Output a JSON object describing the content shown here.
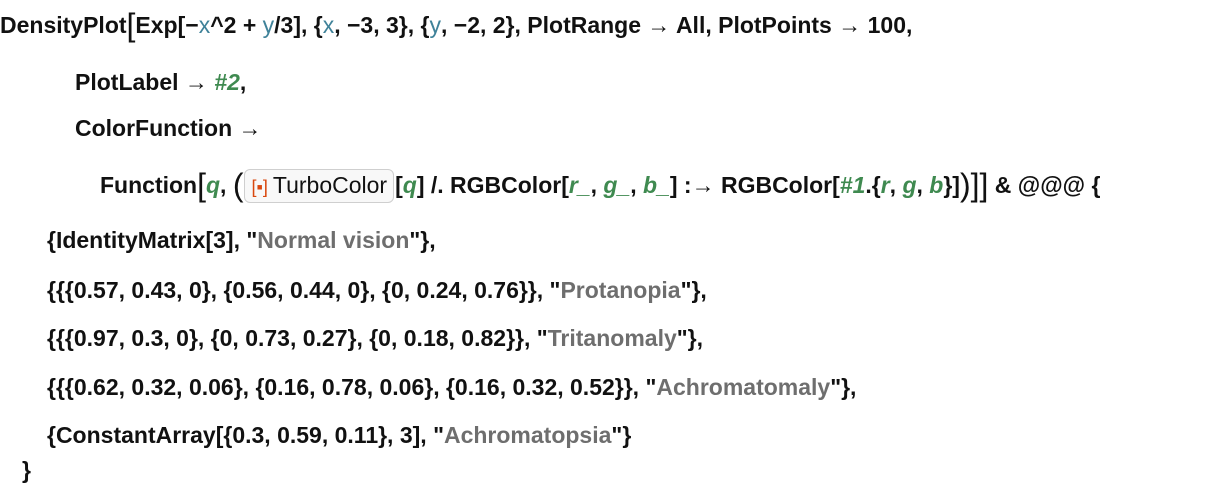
{
  "colors": {
    "variable": "#3f8299",
    "pattern": "#3f8a50",
    "string": "#6e6e6e",
    "icon": "#d9480f"
  },
  "lines": [
    {
      "segs": [
        [
          "k",
          "DensityPlot"
        ],
        [
          "big",
          "["
        ],
        [
          "k",
          "Exp[−"
        ],
        [
          "v",
          "x"
        ],
        [
          "k",
          "^2 + "
        ],
        [
          "v",
          "y"
        ],
        [
          "k",
          "/3], {"
        ],
        [
          "v",
          "x"
        ],
        [
          "k",
          ", −3, 3}, {"
        ],
        [
          "v",
          "y"
        ],
        [
          "k",
          ", −2, 2}, PlotRange → All, PlotPoints → 100,"
        ]
      ]
    },
    {
      "segs": [
        [
          "k",
          "PlotLabel → "
        ],
        [
          "g",
          "#2"
        ],
        [
          "k",
          ","
        ]
      ]
    },
    {
      "segs": [
        [
          "k",
          "ColorFunction →"
        ]
      ]
    },
    {
      "segs": [
        [
          "k",
          "Function"
        ],
        [
          "big",
          "["
        ],
        [
          "g",
          "q"
        ],
        [
          "k",
          ", "
        ],
        [
          "big",
          "("
        ],
        [
          "chip",
          "TurboColor"
        ],
        [
          "k",
          "["
        ],
        [
          "g",
          "q"
        ],
        [
          "k",
          "] /. RGBColor["
        ],
        [
          "g",
          "r_"
        ],
        [
          "k",
          ", "
        ],
        [
          "g",
          "g_"
        ],
        [
          "k",
          ", "
        ],
        [
          "g",
          "b_"
        ],
        [
          "k",
          "] :→ RGBColor["
        ],
        [
          "g",
          "#1"
        ],
        [
          "k",
          ".{"
        ],
        [
          "g",
          "r"
        ],
        [
          "k",
          ", "
        ],
        [
          "g",
          "g"
        ],
        [
          "k",
          ", "
        ],
        [
          "g",
          "b"
        ],
        [
          "k",
          "}]"
        ],
        [
          "big",
          ")]]"
        ],
        [
          "k",
          " & @@@ {"
        ]
      ]
    },
    {
      "segs": [
        [
          "k",
          "{IdentityMatrix[3], \""
        ],
        [
          "s",
          "Normal vision"
        ],
        [
          "k",
          "\"},"
        ]
      ]
    },
    {
      "segs": [
        [
          "k",
          "{{{0.57, 0.43, 0}, {0.56, 0.44, 0}, {0, 0.24, 0.76}}, \""
        ],
        [
          "s",
          "Protanopia"
        ],
        [
          "k",
          "\"},"
        ]
      ]
    },
    {
      "segs": [
        [
          "k",
          "{{{0.97, 0.3, 0}, {0, 0.73, 0.27}, {0, 0.18, 0.82}}, \""
        ],
        [
          "s",
          "Tritanomaly"
        ],
        [
          "k",
          "\"},"
        ]
      ]
    },
    {
      "segs": [
        [
          "k",
          "{{{0.62, 0.32, 0.06}, {0.16, 0.78, 0.06}, {0.16, 0.32, 0.52}}, \""
        ],
        [
          "s",
          "Achromatomaly"
        ],
        [
          "k",
          "\"},"
        ]
      ]
    },
    {
      "segs": [
        [
          "k",
          "{ConstantArray[{0.3, 0.59, 0.11}, 3], \""
        ],
        [
          "s",
          "Achromatopsia"
        ],
        [
          "k",
          "\"}"
        ]
      ]
    },
    {
      "segs": [
        [
          "k",
          "}"
        ]
      ]
    }
  ]
}
